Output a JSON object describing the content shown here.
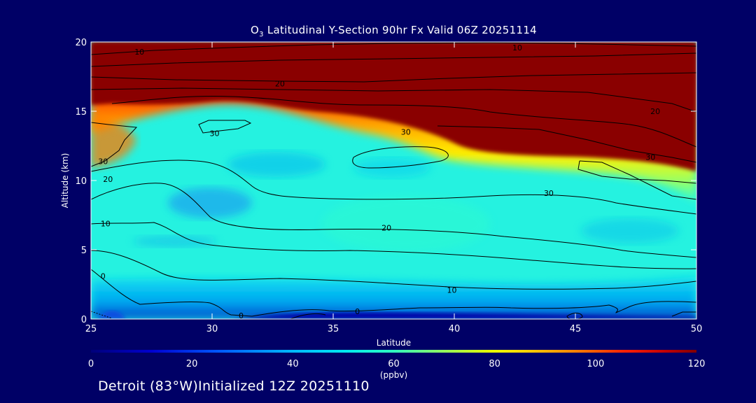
{
  "title_prefix": "O",
  "title_sub": "3",
  "title_rest": " Latitudinal Y-Section 90hr  Fx Valid 06Z 20251114",
  "footer": "Detroit (83°W)Initialized 12Z 20251110",
  "chart_data": {
    "type": "heatmap",
    "title": "O3 Latitudinal Y-Section 90hr  Fx Valid 06Z 20251114",
    "xlabel": "Latitude",
    "ylabel": "Altitude (km)",
    "xlim": [
      25,
      50
    ],
    "ylim": [
      0,
      20
    ],
    "x_ticks": [
      25,
      30,
      35,
      40,
      45,
      50
    ],
    "y_ticks": [
      0,
      5,
      10,
      15,
      20
    ],
    "colorbar": {
      "label": "(ppbv)",
      "range": [
        0,
        120
      ],
      "ticks": [
        0,
        20,
        40,
        60,
        80,
        100,
        120
      ]
    },
    "contour_labels": [
      {
        "text": "10",
        "x": 27.0,
        "y": 19.3
      },
      {
        "text": "10",
        "x": 42.6,
        "y": 19.6
      },
      {
        "text": "20",
        "x": 32.8,
        "y": 17.0
      },
      {
        "text": "20",
        "x": 48.3,
        "y": 15.0
      },
      {
        "text": "30",
        "x": 30.1,
        "y": 13.4
      },
      {
        "text": "30",
        "x": 38.0,
        "y": 13.5
      },
      {
        "text": "30",
        "x": 48.1,
        "y": 11.7
      },
      {
        "text": "30",
        "x": 25.5,
        "y": 11.4
      },
      {
        "text": "20",
        "x": 25.7,
        "y": 10.1
      },
      {
        "text": "30",
        "x": 43.9,
        "y": 9.1
      },
      {
        "text": "10",
        "x": 25.6,
        "y": 6.9
      },
      {
        "text": "20",
        "x": 37.2,
        "y": 6.6
      },
      {
        "text": "10",
        "x": 39.9,
        "y": 2.1
      },
      {
        "text": "0",
        "x": 25.5,
        "y": 3.1
      },
      {
        "text": "0",
        "x": 31.2,
        "y": 0.25
      },
      {
        "text": "0",
        "x": 36.0,
        "y": 0.55
      }
    ]
  }
}
